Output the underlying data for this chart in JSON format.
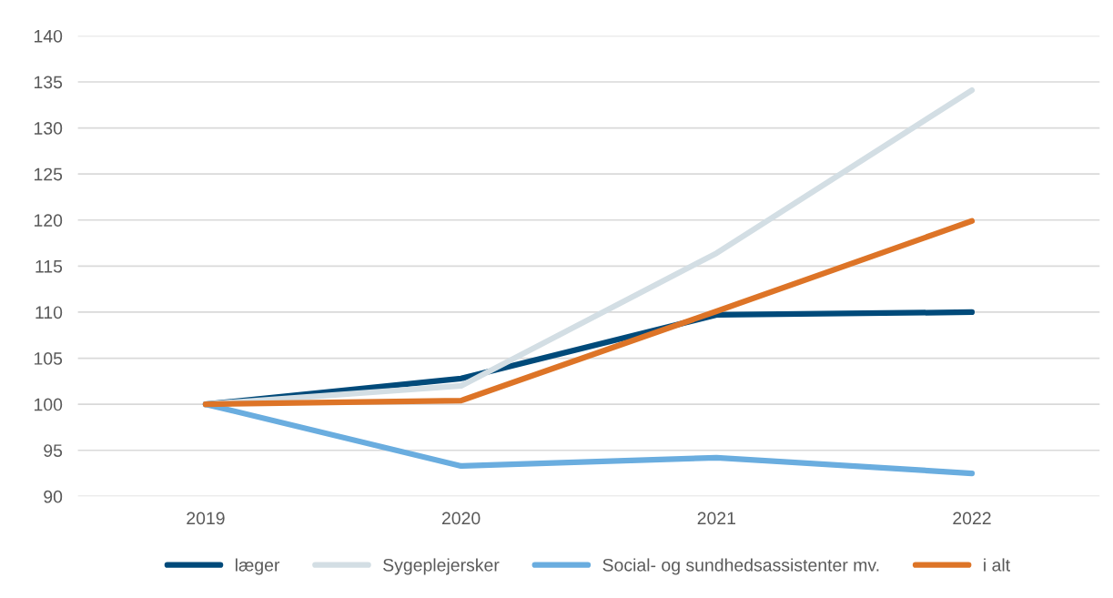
{
  "chart_data": {
    "type": "line",
    "categories": [
      "2019",
      "2020",
      "2021",
      "2022"
    ],
    "series": [
      {
        "name": "læger",
        "color": "#004a7a",
        "values": [
          100,
          102.8,
          109.7,
          110.0
        ]
      },
      {
        "name": "Sygeplejersker",
        "color": "#d3dee4",
        "values": [
          100,
          102.0,
          116.4,
          134.1
        ]
      },
      {
        "name": "Social- og sundhedsassistenter mv.",
        "color": "#6aaddf",
        "values": [
          100,
          93.3,
          94.2,
          92.5
        ]
      },
      {
        "name": "i alt",
        "color": "#dd7427",
        "values": [
          100,
          100.4,
          110.1,
          119.9
        ]
      }
    ],
    "ylim": [
      90,
      140
    ],
    "yticks": [
      90,
      95,
      100,
      105,
      110,
      115,
      120,
      125,
      130,
      135,
      140
    ],
    "grid": "y",
    "legend": "bottom"
  }
}
